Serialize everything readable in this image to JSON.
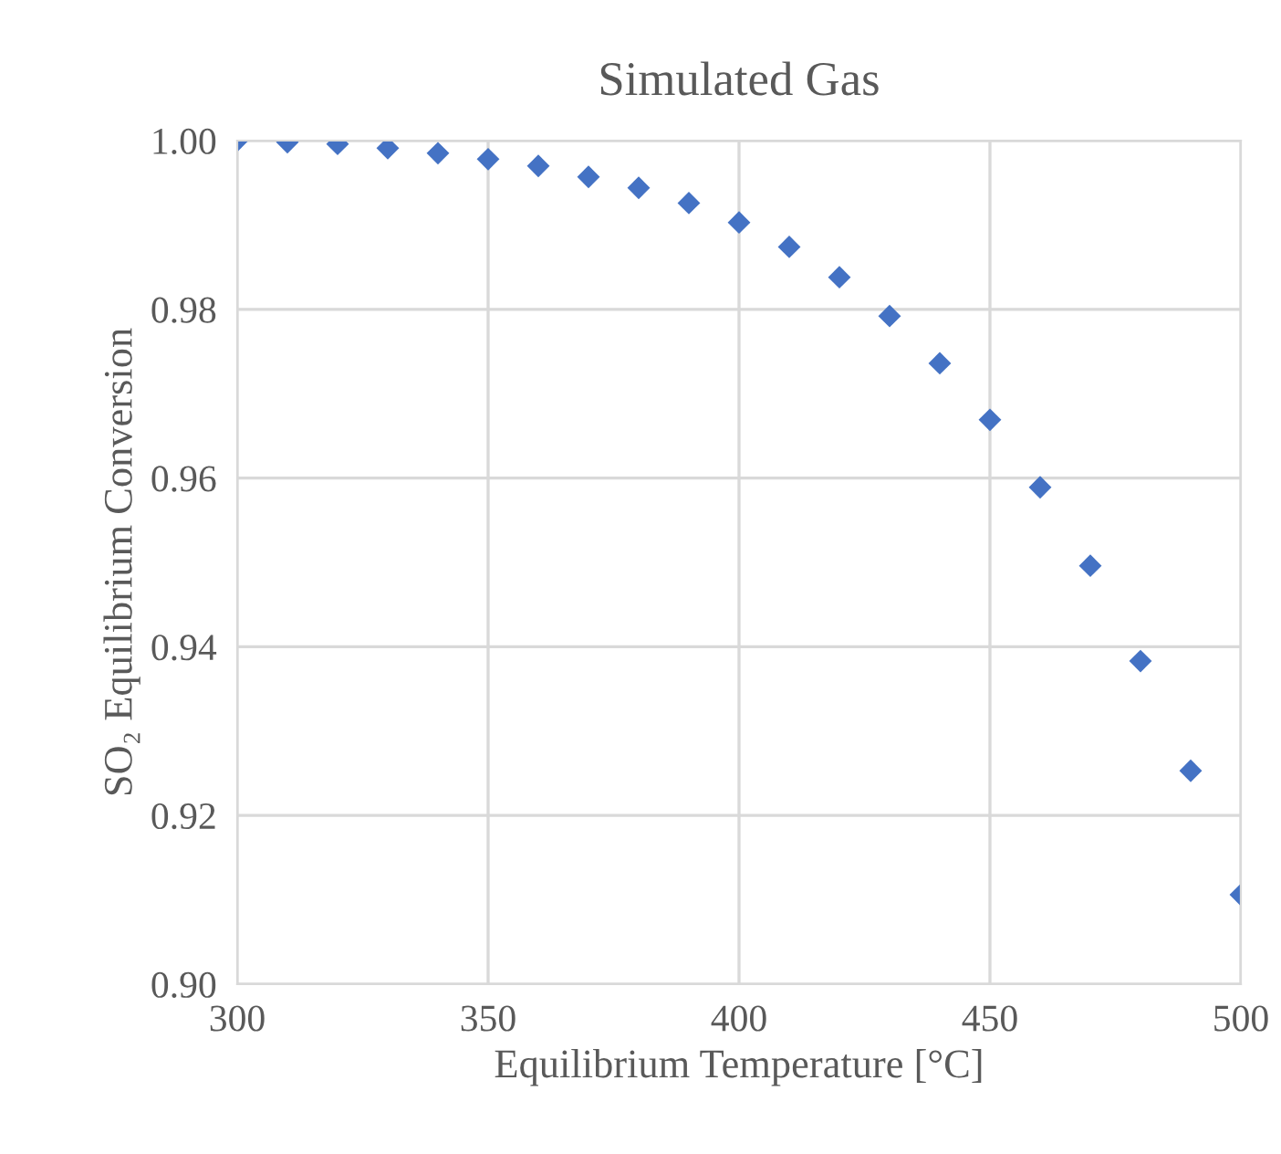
{
  "chart_data": {
    "type": "scatter",
    "title": "Simulated Gas",
    "xlabel": "Equilibrium Temperature [°C]",
    "ylabel": "SO₂ Equilibrium Conversion",
    "x": [
      300,
      310,
      320,
      330,
      340,
      350,
      360,
      370,
      380,
      390,
      400,
      410,
      420,
      430,
      440,
      450,
      460,
      470,
      480,
      490,
      500
    ],
    "series": [
      {
        "color": "#4472c4",
        "values": [
          1.0,
          0.9998,
          0.9996,
          0.9991,
          0.9985,
          0.9978,
          0.997,
          0.9957,
          0.9944,
          0.9926,
          0.9903,
          0.9874,
          0.9838,
          0.9792,
          0.9736,
          0.9669,
          0.9589,
          0.9496,
          0.9383,
          0.9253,
          0.9106
        ]
      }
    ],
    "xlim": [
      300,
      500
    ],
    "xticks": [
      300,
      350,
      400,
      450,
      500
    ],
    "ylim": [
      0.9,
      1.0
    ],
    "yticks": [
      {
        "value": 0.9,
        "label": "0.90"
      },
      {
        "value": 0.92,
        "label": "0.92"
      },
      {
        "value": 0.94,
        "label": "0.94"
      },
      {
        "value": 0.96,
        "label": "0.96"
      },
      {
        "value": 0.98,
        "label": "0.98"
      },
      {
        "value": 1.0,
        "label": "1.00"
      }
    ],
    "grid": true,
    "marker": "diamond"
  }
}
